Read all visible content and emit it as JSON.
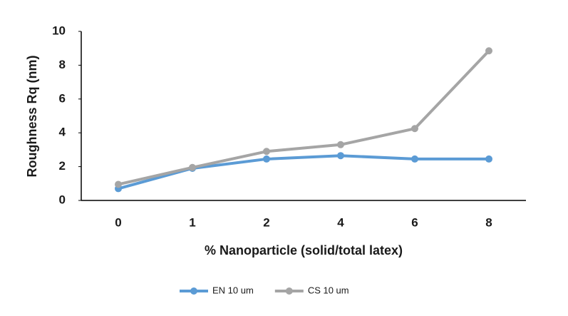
{
  "chart_data": {
    "type": "line",
    "x_label": "% Nanoparticle (solid/total latex)",
    "y_label": "Roughness Rq (nm)",
    "categories": [
      "0",
      "1",
      "2",
      "4",
      "6",
      "8"
    ],
    "series": [
      {
        "name": "EN 10 um",
        "color": "#5b9bd5",
        "values": [
          0.7,
          1.9,
          2.45,
          2.65,
          2.45,
          2.45
        ]
      },
      {
        "name": "CS 10 um",
        "color": "#a5a5a5",
        "values": [
          0.95,
          1.95,
          2.9,
          3.3,
          4.25,
          8.85
        ]
      }
    ],
    "ylim": [
      0,
      10
    ],
    "yticks": [
      0,
      2,
      4,
      6,
      8,
      10
    ],
    "grid": false,
    "legend": "bottom"
  }
}
